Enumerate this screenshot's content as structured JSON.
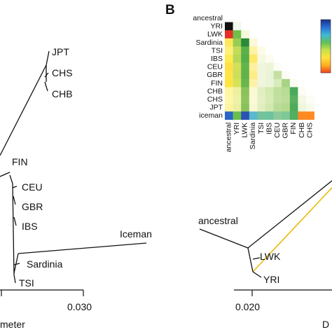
{
  "panel_b_label": "B",
  "tree_left": {
    "leaves": [
      "JPT",
      "CHS",
      "CHB",
      "FIN",
      "CEU",
      "GBR",
      "IBS",
      "Iceman",
      "Sardinia",
      "TSI"
    ],
    "scale_tick": "0.030",
    "scale_title_fragment": "meter"
  },
  "tree_right": {
    "leaves": [
      "ancestral",
      "LWK",
      "YRI"
    ],
    "scale_tick": "0.020",
    "title_fragment": "D",
    "highlight_color": "#e8b800"
  },
  "heatmap": {
    "rows": [
      "ancestral",
      "YRI",
      "LWK",
      "Sardinia",
      "TSI",
      "IBS",
      "CEU",
      "GBR",
      "FIN",
      "CHB",
      "CHS",
      "JPT",
      "iceman"
    ],
    "cols": [
      "ancestral",
      "YRI",
      "LWK",
      "Sardinia",
      "TSI",
      "IBS",
      "CEU",
      "GBR",
      "FIN",
      "CHB",
      "CHS"
    ],
    "colorbar": [
      "#1a2f8c",
      "#2a6fd4",
      "#3fb8d8",
      "#5fc05a",
      "#c8e04a",
      "#ffe23a",
      "#ffb020",
      "#f04020"
    ],
    "cells": [
      [
        "#111111",
        "#f2f8ec"
      ],
      [
        "#e33028",
        "#6fbf4a",
        "#f5fadc"
      ],
      [
        "#fde85a",
        "#98cc54",
        "#2a8a3a",
        "#fcf8d8"
      ],
      [
        "#fff07a",
        "#c2dd5a",
        "#5ab04a",
        "#fff2a4",
        "#fbfbe8"
      ],
      [
        "#ffec50",
        "#b8d858",
        "#56ae4a",
        "#ffe86a",
        "#f6f9e0",
        "#fcfcf2"
      ],
      [
        "#ffe046",
        "#d2e05a",
        "#64b44c",
        "#fff0a0",
        "#eff6dc",
        "#edf5d8",
        "#fcfcf4"
      ],
      [
        "#ffe548",
        "#ccdf5c",
        "#62b24c",
        "#ffec88",
        "#f0f6de",
        "#eaf3d6",
        "#c4e0a4",
        "#fcfcf4"
      ],
      [
        "#ffe442",
        "#d6e25a",
        "#68b64e",
        "#fff2a8",
        "#eef6dc",
        "#eaf4d8",
        "#d8ebbc",
        "#a6d484",
        "#fcfcf4"
      ],
      [
        "#fff6a0",
        "#eef0a0",
        "#8ac25c",
        "#f9f9d4",
        "#e0efc0",
        "#d4eab0",
        "#bde09c",
        "#b8dc94",
        "#48aa5a",
        "#fcfcf4"
      ],
      [
        "#fff7a8",
        "#eef2a8",
        "#8ec560",
        "#fafad8",
        "#e4f0c6",
        "#d8ebb6",
        "#c2e0a2",
        "#bcde9a",
        "#58b060",
        "#f4f8e4",
        "#fdfdf8"
      ],
      [
        "#fff4a0",
        "#eaf0a0",
        "#86c25c",
        "#f8f9d4",
        "#e0eec0",
        "#d2e8b0",
        "#b8dd98",
        "#b4da90",
        "#4eab5a",
        "#eef6dc",
        "#f8faec"
      ],
      [
        "#2a64c8",
        "#6abf4e",
        "#2b52b2",
        "#5ab8d0",
        "#74c29c",
        "#6ec2a0",
        "#8cca9a",
        "#7ec898",
        "#52ae60",
        "#ff8a24",
        "#ff8a24"
      ]
    ]
  }
}
